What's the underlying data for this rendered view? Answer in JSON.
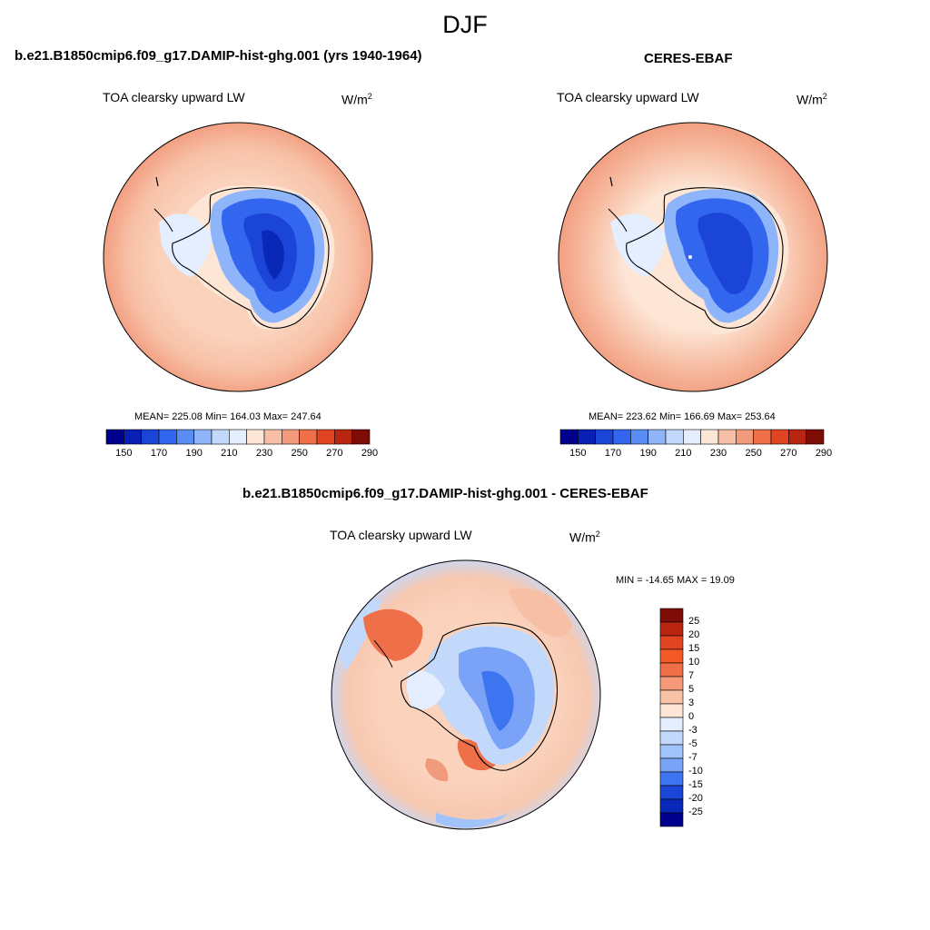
{
  "figure": {
    "title": "DJF"
  },
  "panels": [
    {
      "title": "b.e21.B1850cmip6.f09_g17.DAMIP-hist-ghg.001 (yrs 1940-1964)",
      "variable": "TOA clearsky upward LW",
      "units_base": "W/m",
      "units_exp": "2",
      "stats": "MEAN= 225.08  Min= 164.03  Max= 247.64",
      "colorbar": {
        "ticks": [
          "150",
          "170",
          "190",
          "210",
          "230",
          "250",
          "270",
          "290"
        ],
        "colors": [
          "#00008c",
          "#0a1fb4",
          "#1b45d6",
          "#3366ee",
          "#5a8cf5",
          "#8eb5fa",
          "#c3d9fc",
          "#e5eefe",
          "#fde6d6",
          "#f7c0a6",
          "#f29a7c",
          "#ee6f48",
          "#e04420",
          "#b82510",
          "#7d0c06"
        ]
      }
    },
    {
      "title": "CERES-EBAF",
      "variable": "TOA clearsky upward LW",
      "units_base": "W/m",
      "units_exp": "2",
      "stats": "MEAN= 223.62  Min= 166.69  Max= 253.64",
      "colorbar": {
        "ticks": [
          "150",
          "170",
          "190",
          "210",
          "230",
          "250",
          "270",
          "290"
        ],
        "colors": [
          "#00008c",
          "#0a1fb4",
          "#1b45d6",
          "#3366ee",
          "#5a8cf5",
          "#8eb5fa",
          "#c3d9fc",
          "#e5eefe",
          "#fde6d6",
          "#f7c0a6",
          "#f29a7c",
          "#ee6f48",
          "#e04420",
          "#b82510",
          "#7d0c06"
        ]
      }
    },
    {
      "title": "b.e21.B1850cmip6.f09_g17.DAMIP-hist-ghg.001 - CERES-EBAF",
      "variable": "TOA clearsky upward LW",
      "units_base": "W/m",
      "units_exp": "2",
      "stats": "MIN = -14.65 MAX =  19.09",
      "colorbar": {
        "ticks": [
          "25",
          "20",
          "15",
          "10",
          "7",
          "5",
          "3",
          "0",
          "-3",
          "-5",
          "-7",
          "-10",
          "-15",
          "-20",
          "-25"
        ],
        "colors": [
          "#7d0c06",
          "#b82510",
          "#e04420",
          "#f45a26",
          "#ee6f48",
          "#f49a78",
          "#f8c2a6",
          "#fde6d6",
          "#e5eefe",
          "#c3d9fc",
          "#a0c3fb",
          "#7aa3f7",
          "#3d74ef",
          "#1b45d6",
          "#0a28b8",
          "#00008c"
        ]
      }
    }
  ],
  "colors": {
    "ocean_warm": "#f7c0a6",
    "ocean_outer": "#f29a7c",
    "ice_blue": "#3366ee",
    "ice_core": "#1b45d6",
    "coast": "#000000"
  }
}
